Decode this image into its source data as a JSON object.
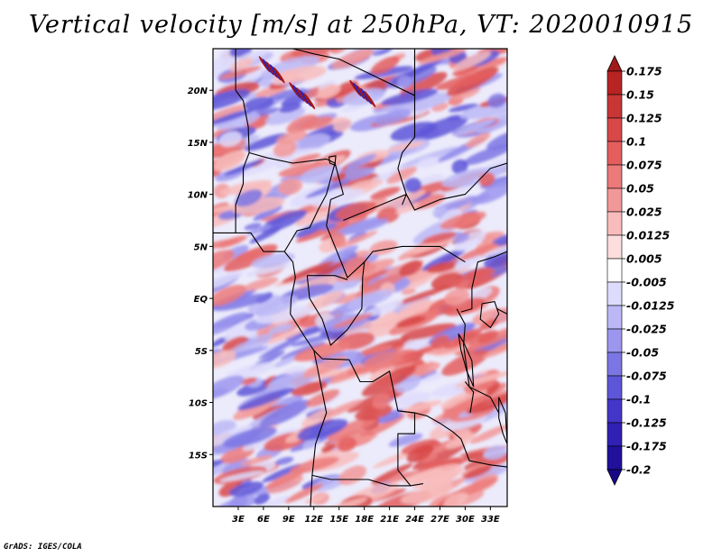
{
  "title": "Vertical velocity [m/s] at 250hPa, VT: 2020010915",
  "footer": "GrADS: IGES/COLA",
  "chart_data": {
    "type": "heatmap",
    "title": "Vertical velocity [m/s] at 250hPa, VT: 2020010915",
    "variable": "Vertical velocity",
    "units": "m/s",
    "level": "250hPa",
    "valid_time": "2020010915",
    "lon_range": [
      0,
      35
    ],
    "lat_range": [
      -20,
      24
    ],
    "x_ticks": [
      "3E",
      "6E",
      "9E",
      "12E",
      "15E",
      "18E",
      "21E",
      "24E",
      "27E",
      "30E",
      "33E"
    ],
    "x_tick_values": [
      3,
      6,
      9,
      12,
      15,
      18,
      21,
      24,
      27,
      30,
      33
    ],
    "y_ticks": [
      "20N",
      "15N",
      "10N",
      "5N",
      "EQ",
      "5S",
      "10S",
      "15S"
    ],
    "y_tick_values": [
      20,
      15,
      10,
      5,
      0,
      -5,
      -10,
      -15
    ],
    "colorbar": {
      "levels": [
        "0.175",
        "0.15",
        "0.125",
        "0.1",
        "0.075",
        "0.05",
        "0.025",
        "0.0125",
        "0.005",
        "-0.005",
        "-0.0125",
        "-0.025",
        "-0.05",
        "-0.075",
        "-0.1",
        "-0.125",
        "-0.175",
        "-0.2"
      ],
      "colors": [
        "#a11818",
        "#b82424",
        "#c83636",
        "#d84848",
        "#e45e5e",
        "#ec7a7a",
        "#f29898",
        "#f8bcbc",
        "#fcdede",
        "#ffffff",
        "#dedcfc",
        "#bcb8f6",
        "#9c96ee",
        "#7c76e4",
        "#5e56d8",
        "#4436c8",
        "#3020b4",
        "#20109c",
        "#180888"
      ]
    }
  }
}
